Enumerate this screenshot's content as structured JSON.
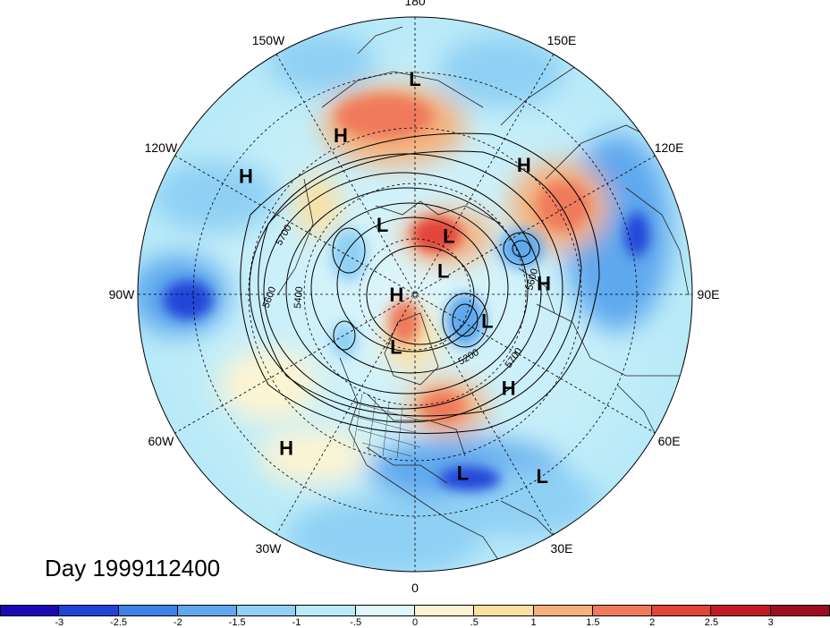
{
  "title": "Day 1999112400",
  "longitude_labels": [
    "90E",
    "60E",
    "30E",
    "0",
    "30W",
    "60W",
    "90W",
    "120W",
    "150W",
    "180",
    "150E",
    "120E"
  ],
  "highs_lows": [
    {
      "type": "H",
      "lon": 95,
      "lat": 48
    },
    {
      "type": "H",
      "lon": 45,
      "lat": 47
    },
    {
      "type": "H",
      "lon": 140,
      "lat": 35
    },
    {
      "type": "H",
      "lon": -155,
      "lat": 33
    },
    {
      "type": "H",
      "lon": -125,
      "lat": 23
    },
    {
      "type": "H",
      "lon": -40,
      "lat": 25
    },
    {
      "type": "H",
      "lon": -90,
      "lat": 84
    },
    {
      "type": "L",
      "lon": 35,
      "lat": 18
    },
    {
      "type": "L",
      "lon": 15,
      "lat": 30
    },
    {
      "type": "L",
      "lon": -180,
      "lat": 20
    },
    {
      "type": "L",
      "lon": 70,
      "lat": 65
    },
    {
      "type": "L",
      "lon": 150,
      "lat": 68
    },
    {
      "type": "L",
      "lon": 130,
      "lat": 78
    },
    {
      "type": "L",
      "lon": -155,
      "lat": 65
    },
    {
      "type": "L",
      "lon": -20,
      "lat": 72
    }
  ],
  "contour_labels": [
    "5700",
    "5600",
    "5400",
    "5200",
    "5700",
    "5600"
  ],
  "colorbar": {
    "colors": [
      "#1a0ab5",
      "#2144d8",
      "#3d82e6",
      "#5fa8ee",
      "#8fd0f4",
      "#b8eaf8",
      "#dff6fb",
      "#fdf4d3",
      "#fbe0a2",
      "#f5b07c",
      "#ef7a5b",
      "#e2443a",
      "#c21a24",
      "#9e0d1e"
    ],
    "labels": [
      "-3",
      "-2.5",
      "-2",
      "-1.5",
      "-1",
      "-.5",
      "0",
      ".5",
      "1",
      "1.5",
      "2",
      "2.5",
      "3"
    ]
  }
}
